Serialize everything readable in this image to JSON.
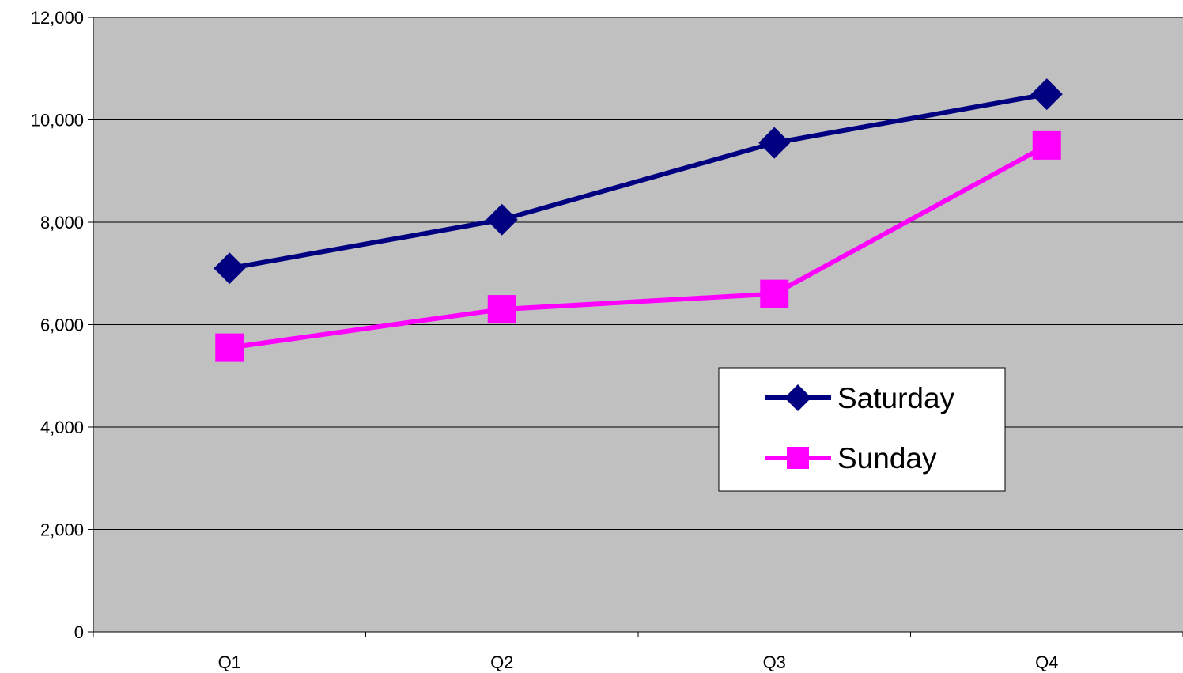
{
  "chart_data": {
    "type": "line",
    "title": "",
    "xlabel": "",
    "ylabel": "",
    "categories": [
      "Q1",
      "Q2",
      "Q3",
      "Q4"
    ],
    "ylim": [
      0,
      12000
    ],
    "y_ticks": [
      0,
      2000,
      4000,
      6000,
      8000,
      10000,
      12000
    ],
    "y_tick_labels": [
      "0",
      "2,000",
      "4,000",
      "6,000",
      "8,000",
      "10,000",
      "12,000"
    ],
    "grid": true,
    "legend_position": "right, lower-middle",
    "plot_background": "#C0C0C0",
    "series": [
      {
        "name": "Saturday",
        "values": [
          7100,
          8050,
          9550,
          10500
        ],
        "color": "#000080",
        "marker": "diamond"
      },
      {
        "name": "Sunday",
        "values": [
          5550,
          6300,
          6600,
          9500
        ],
        "color": "#FF00FF",
        "marker": "square"
      }
    ]
  }
}
